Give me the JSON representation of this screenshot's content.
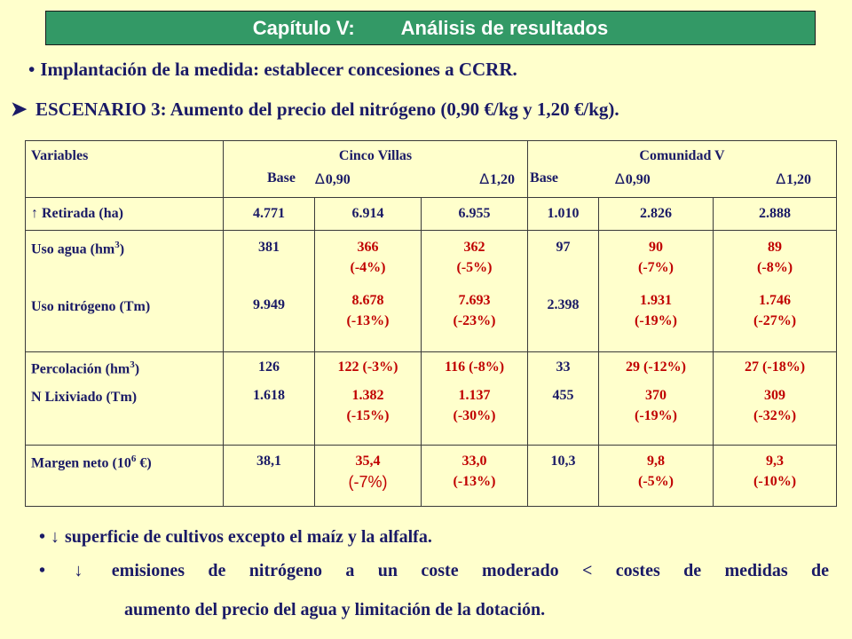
{
  "header": {
    "chapter": "Capítulo V:",
    "title": "Análisis de resultados"
  },
  "intro": {
    "bullet_glyph": "•",
    "measure": "Implantación de la medida: establecer concesiones a CCRR.",
    "scenario_arrow": "➤",
    "scenario": "ESCENARIO 3: Aumento del precio del nitrógeno (0,90 €/kg y 1,20 €/kg)."
  },
  "table": {
    "header": {
      "variables": "Variables",
      "group1": "Cinco Villas",
      "group2": "Comunidad V",
      "base": "Base",
      "delta": "∆",
      "p090": "0,90",
      "p120": "1,20"
    },
    "rows": {
      "retirada": {
        "label": "↑ Retirada (ha)",
        "cv_base": "4.771",
        "cv_090": "6.914",
        "cv_120": "6.955",
        "co_base": "1.010",
        "co_090": "2.826",
        "co_120": "2.888"
      },
      "agua": {
        "label_a": "Uso agua (hm",
        "label_sup": "3",
        "label_b": ")",
        "cv_base": "381",
        "cv_090": "366",
        "cv_090_pct": "(-4%)",
        "cv_120": "362",
        "cv_120_pct": "(-5%)",
        "co_base": "97",
        "co_090": "90",
        "co_090_pct": "(-7%)",
        "co_120": "89",
        "co_120_pct": "(-8%)"
      },
      "nitrogeno": {
        "label": "Uso nitrógeno (Tm)",
        "cv_base": "9.949",
        "cv_090": "8.678",
        "cv_090_pct": "(-13%)",
        "cv_120": "7.693",
        "cv_120_pct": "(-23%)",
        "co_base": "2.398",
        "co_090": "1.931",
        "co_090_pct": "(-19%)",
        "co_120": "1.746",
        "co_120_pct": "(-27%)"
      },
      "percolacion": {
        "label_a": "Percolación (hm",
        "label_sup": "3",
        "label_b": ")",
        "cv_base": "126",
        "cv_090": "122 (-3%)",
        "cv_120": "116 (-8%)",
        "co_base": "33",
        "co_090": "29 (-12%)",
        "co_120": "27 (-18%)"
      },
      "lixiviado": {
        "label": "N Lixiviado (Tm)",
        "cv_base": "1.618",
        "cv_090": "1.382",
        "cv_090_pct": "(-15%)",
        "cv_120": "1.137",
        "cv_120_pct": "(-30%)",
        "co_base": "455",
        "co_090": "370",
        "co_090_pct": "(-19%)",
        "co_120": "309",
        "co_120_pct": "(-32%)"
      },
      "margen": {
        "label_a": "Margen neto (10",
        "label_sup": "6",
        "label_b": " €)",
        "cv_base": "38,1",
        "cv_090": "35,4",
        "cv_090_pct": "(-7%)",
        "cv_120": "33,0",
        "cv_120_pct": "(-13%)",
        "co_base": "10,3",
        "co_090": "9,8",
        "co_090_pct": "(-5%)",
        "co_120": "9,3",
        "co_120_pct": "(-10%)"
      }
    }
  },
  "conclusions": {
    "bullet_glyph": "•",
    "down_arrow": "↓",
    "c1": "superficie de cultivos excepto el maíz y la alfalfa.",
    "c2_line1": "emisiones de nitrógeno a un coste moderado < costes de medidas de",
    "c2_line2": "aumento del precio del agua y limitación de la dotación."
  },
  "colors": {
    "background": "#ffffcc",
    "title_bar": "#339966",
    "text": "#1a1a66",
    "highlight": "#c00000"
  }
}
